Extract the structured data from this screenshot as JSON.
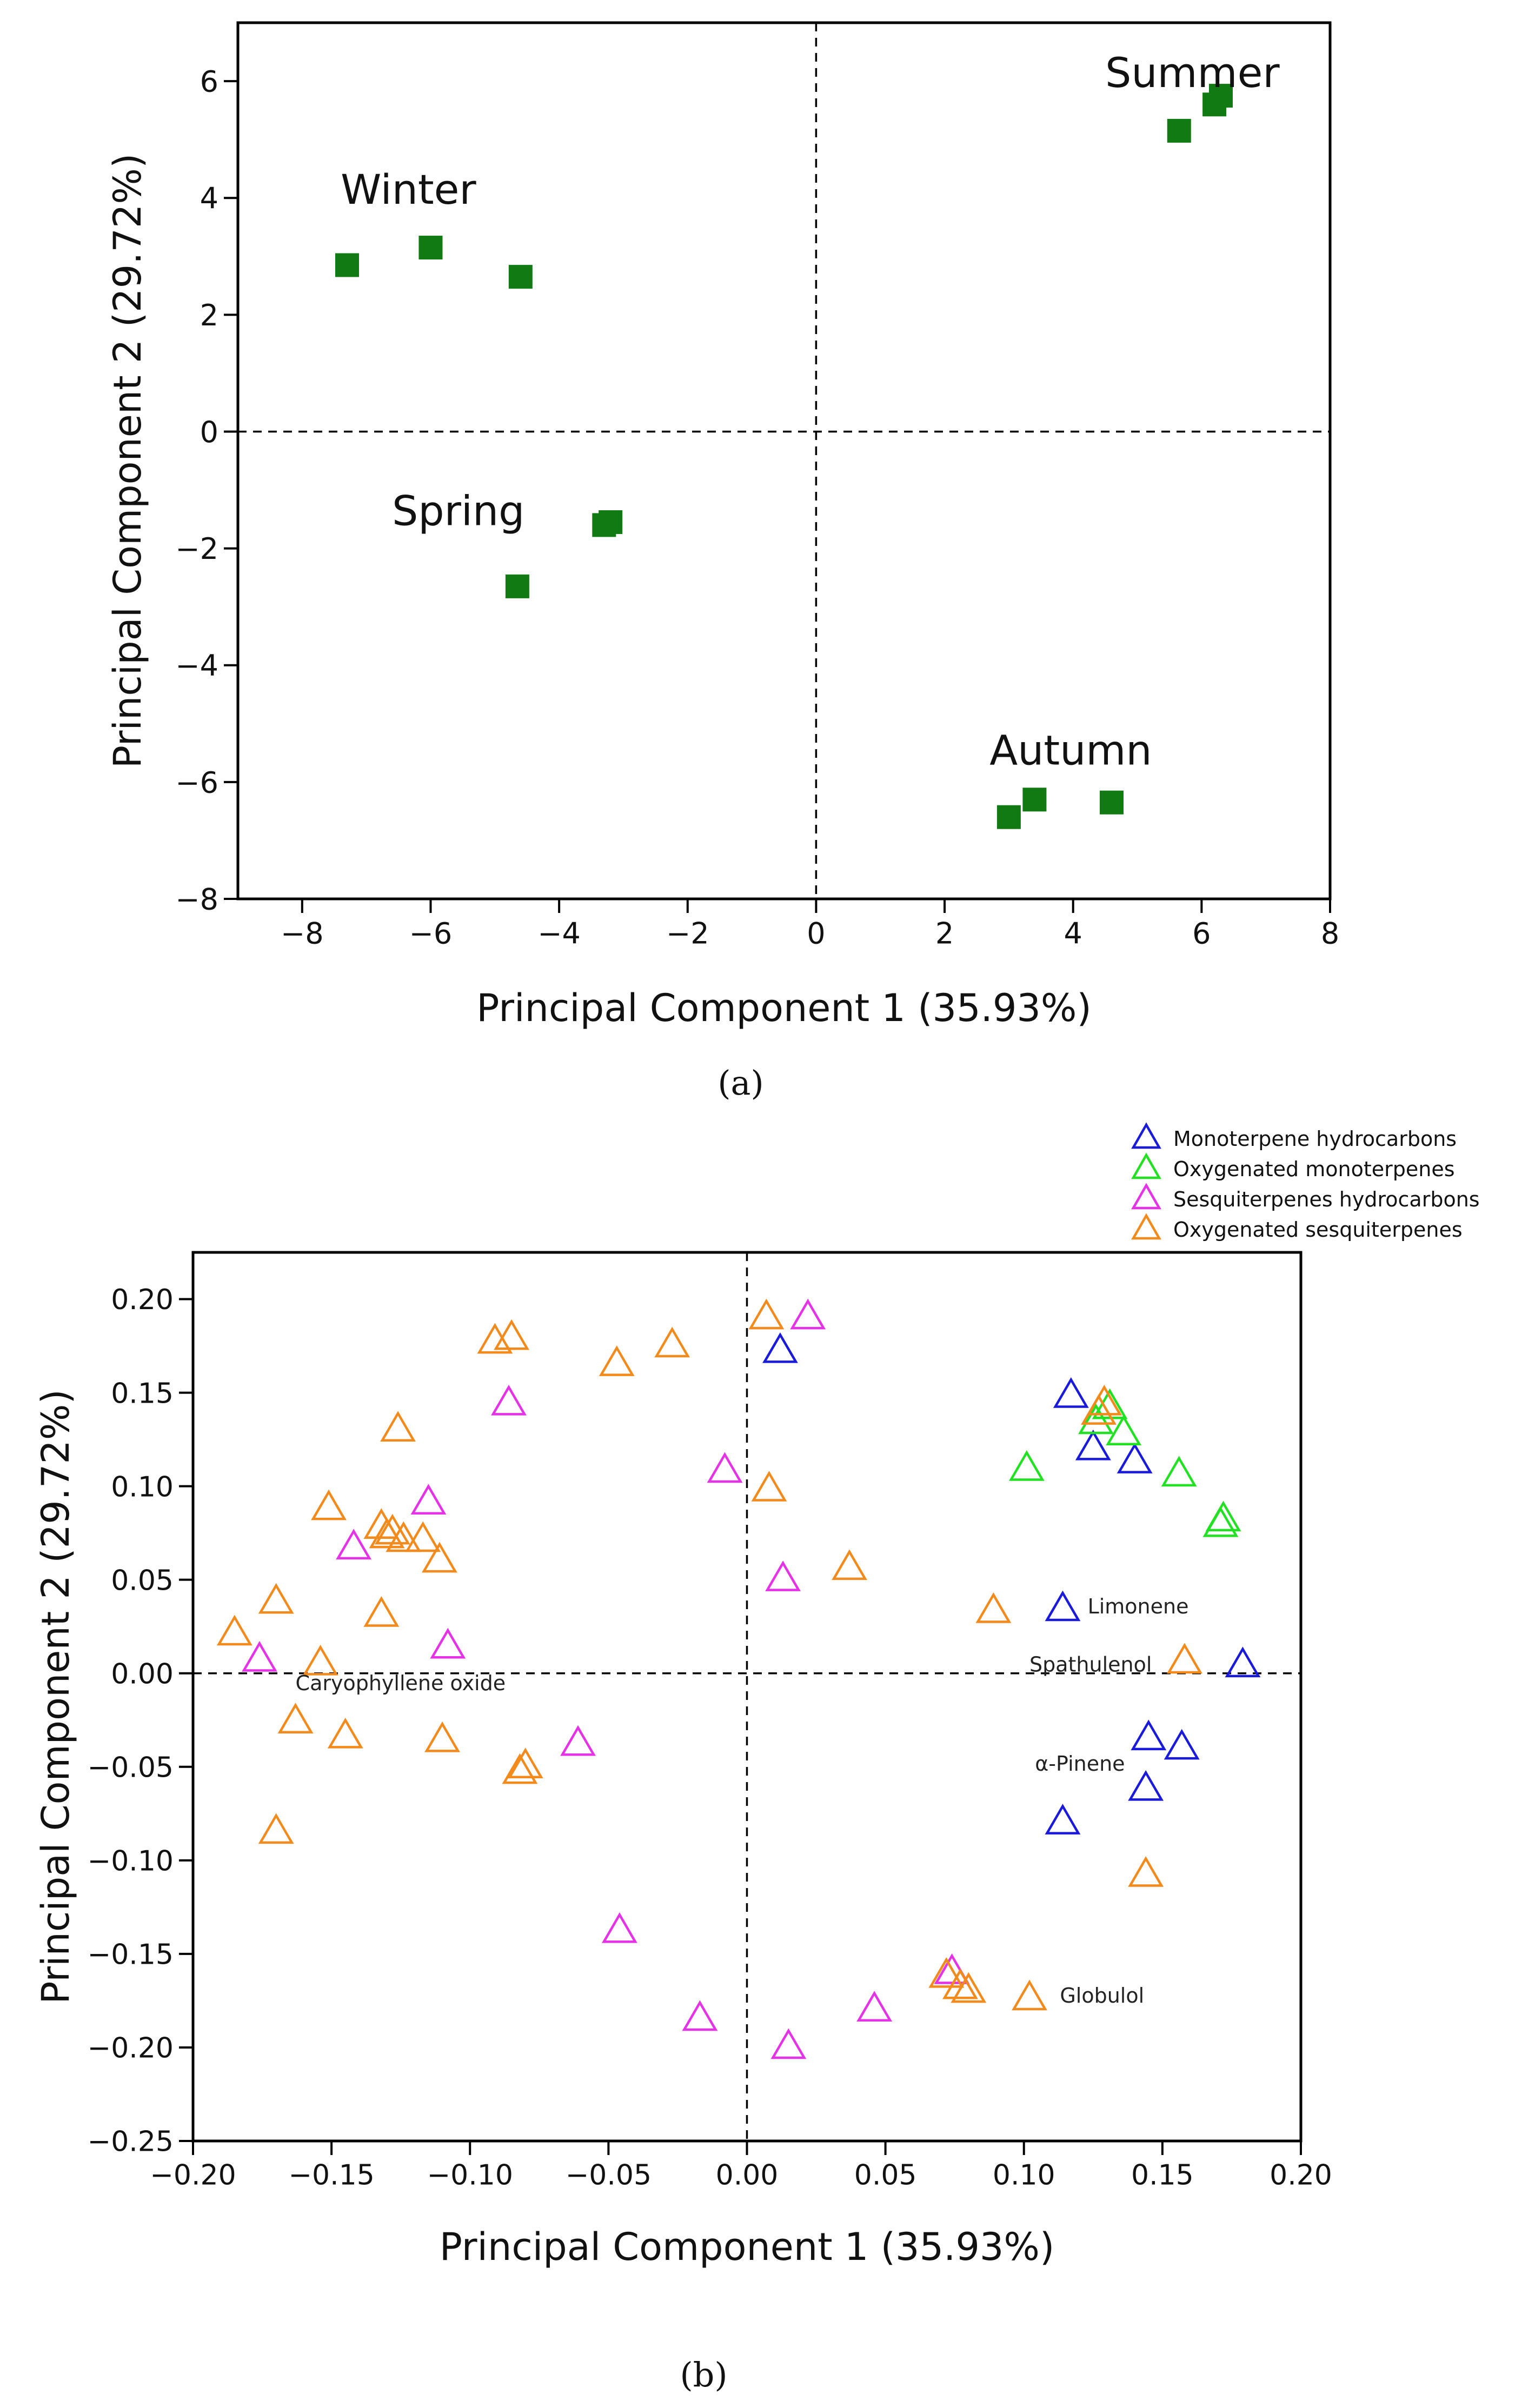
{
  "chart_data": [
    {
      "type": "scatter",
      "caption": "(a)",
      "xlabel": "Principal Component 1 (35.93%)",
      "ylabel": "Principal Component 2 (29.72%)",
      "xlim": [
        -9,
        8
      ],
      "ylim": [
        -8,
        7
      ],
      "xticks": [
        "−8",
        "−6",
        "−4",
        "−2",
        "0",
        "2",
        "4",
        "6",
        "8"
      ],
      "xtick_values": [
        -8,
        -6,
        -4,
        -2,
        0,
        2,
        4,
        6,
        8
      ],
      "yticks": [
        "−8",
        "−6",
        "−4",
        "−2",
        "0",
        "2",
        "4",
        "6"
      ],
      "ytick_values": [
        -8,
        -6,
        -4,
        -2,
        0,
        2,
        4,
        6
      ],
      "marker_color": "#127a12",
      "reference_lines": {
        "x": 0,
        "y": 0,
        "style": "dashed"
      },
      "groups": [
        {
          "label": "Summer",
          "label_at": [
            4.5,
            5.9
          ],
          "points": [
            [
              5.65,
              5.15
            ],
            [
              6.2,
              5.6
            ],
            [
              6.3,
              5.75
            ]
          ]
        },
        {
          "label": "Winter",
          "label_at": [
            -7.4,
            3.9
          ],
          "points": [
            [
              -7.3,
              2.85
            ],
            [
              -6.0,
              3.15
            ],
            [
              -4.6,
              2.65
            ]
          ]
        },
        {
          "label": "Spring",
          "label_at": [
            -6.6,
            -1.6
          ],
          "points": [
            [
              -3.3,
              -1.6
            ],
            [
              -3.2,
              -1.55
            ],
            [
              -4.65,
              -2.65
            ]
          ]
        },
        {
          "label": "Autumn",
          "label_at": [
            2.7,
            -5.7
          ],
          "points": [
            [
              3.0,
              -6.6
            ],
            [
              3.4,
              -6.3
            ],
            [
              4.6,
              -6.35
            ]
          ]
        }
      ]
    },
    {
      "type": "scatter",
      "caption": "(b)",
      "xlabel": "Principal Component 1 (35.93%)",
      "ylabel": "Principal Component 2 (29.72%)",
      "xlim": [
        -0.2,
        0.2
      ],
      "ylim": [
        -0.25,
        0.225
      ],
      "xticks": [
        "−0.20",
        "−0.15",
        "−0.10",
        "−0.05",
        "0.00",
        "0.05",
        "0.10",
        "0.15",
        "0.20"
      ],
      "xtick_values": [
        -0.2,
        -0.15,
        -0.1,
        -0.05,
        0,
        0.05,
        0.1,
        0.15,
        0.2
      ],
      "yticks": [
        "−0.25",
        "−0.20",
        "−0.15",
        "−0.10",
        "−0.05",
        "0.00",
        "0.05",
        "0.10",
        "0.15",
        "0.20"
      ],
      "ytick_values": [
        -0.25,
        -0.2,
        -0.15,
        -0.1,
        -0.05,
        0,
        0.05,
        0.1,
        0.15,
        0.2
      ],
      "reference_lines": {
        "x": 0,
        "y": 0,
        "style": "dashed"
      },
      "legend_position": "top-right, outside",
      "series": [
        {
          "name": "Monoterpene hydrocarbons",
          "color": "#1a1adb",
          "points": [
            [
              0.012,
              0.172
            ],
            [
              0.117,
              0.148
            ],
            [
              0.125,
              0.12
            ],
            [
              0.14,
              0.113
            ],
            [
              0.114,
              0.034
            ],
            [
              0.179,
              0.004
            ],
            [
              0.145,
              -0.035
            ],
            [
              0.157,
              -0.04
            ],
            [
              0.144,
              -0.062
            ],
            [
              0.114,
              -0.08
            ]
          ]
        },
        {
          "name": "Oxygenated monoterpenes",
          "color": "#22e022",
          "points": [
            [
              0.131,
              0.142
            ],
            [
              0.126,
              0.134
            ],
            [
              0.136,
              0.128
            ],
            [
              0.101,
              0.109
            ],
            [
              0.156,
              0.106
            ],
            [
              0.172,
              0.082
            ],
            [
              0.171,
              0.079
            ]
          ]
        },
        {
          "name": "Sesquiterpenes hydrocarbons",
          "color": "#e632e6",
          "points": [
            [
              0.022,
              0.19
            ],
            [
              -0.086,
              0.144
            ],
            [
              -0.008,
              0.108
            ],
            [
              -0.115,
              0.091
            ],
            [
              -0.142,
              0.067
            ],
            [
              0.013,
              0.05
            ],
            [
              -0.108,
              0.014
            ],
            [
              -0.176,
              0.007
            ],
            [
              -0.061,
              -0.038
            ],
            [
              -0.046,
              -0.138
            ],
            [
              -0.017,
              -0.185
            ],
            [
              0.015,
              -0.2
            ],
            [
              0.046,
              -0.18
            ],
            [
              0.074,
              -0.16
            ]
          ]
        },
        {
          "name": "Oxygenated sesquiterpenes",
          "color": "#f28a1c",
          "points": [
            [
              -0.085,
              0.179
            ],
            [
              -0.091,
              0.177
            ],
            [
              -0.027,
              0.175
            ],
            [
              -0.047,
              0.165
            ],
            [
              0.007,
              0.19
            ],
            [
              0.129,
              0.144
            ],
            [
              0.127,
              0.139
            ],
            [
              -0.126,
              0.13
            ],
            [
              0.008,
              0.098
            ],
            [
              -0.151,
              0.088
            ],
            [
              -0.132,
              0.078
            ],
            [
              -0.128,
              0.075
            ],
            [
              -0.13,
              0.073
            ],
            [
              -0.124,
              0.071
            ],
            [
              -0.117,
              0.071
            ],
            [
              -0.111,
              0.06
            ],
            [
              0.037,
              0.056
            ],
            [
              -0.17,
              0.038
            ],
            [
              -0.132,
              0.031
            ],
            [
              0.089,
              0.033
            ],
            [
              -0.185,
              0.021
            ],
            [
              -0.154,
              0.005
            ],
            [
              0.158,
              0.006
            ],
            [
              -0.163,
              -0.026
            ],
            [
              -0.145,
              -0.034
            ],
            [
              -0.11,
              -0.036
            ],
            [
              -0.08,
              -0.05
            ],
            [
              -0.082,
              -0.053
            ],
            [
              -0.17,
              -0.085
            ],
            [
              0.144,
              -0.108
            ],
            [
              0.072,
              -0.162
            ],
            [
              0.077,
              -0.168
            ],
            [
              0.08,
              -0.17
            ],
            [
              0.102,
              -0.174
            ]
          ]
        }
      ],
      "annotations": [
        {
          "text": "Limonene",
          "at": [
            0.123,
            0.036
          ]
        },
        {
          "text": "Spathulenol",
          "at": [
            0.102,
            0.005
          ]
        },
        {
          "text": "Caryophyllene oxide",
          "at": [
            -0.163,
            -0.005
          ]
        },
        {
          "text": "α-Pinene",
          "at": [
            0.104,
            -0.048
          ]
        },
        {
          "text": "Globulol",
          "at": [
            0.113,
            -0.172
          ]
        }
      ]
    }
  ]
}
